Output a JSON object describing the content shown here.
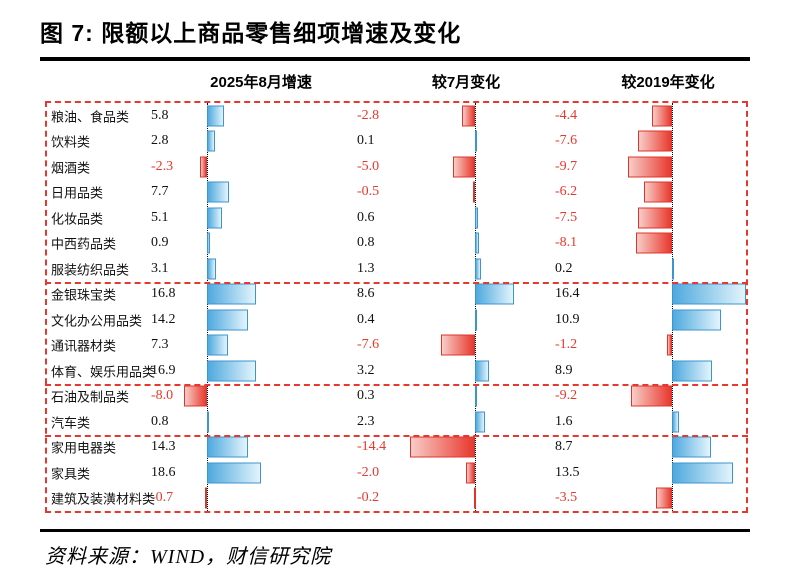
{
  "title": "图 7: 限额以上商品零售细项增速及变化",
  "source": "资料来源：WIND，财信研究院",
  "colors": {
    "positive_bar": "#4fa9de",
    "positive_bar_light": "#e3f4fc",
    "negative_bar": "#e8382d",
    "negative_bar_light": "#f8cdc8",
    "negative_text": "#e8382d",
    "positive_text": "#111111",
    "box_border": "#e8382d"
  },
  "chart_data": {
    "type": "bar",
    "orientation": "horizontal",
    "unit": "%",
    "grid": "off",
    "legend": "none",
    "categories": [
      "粮油、食品类",
      "饮料类",
      "烟酒类",
      "日用品类",
      "化妆品类",
      "中西药品类",
      "服装纺织品类",
      "金银珠宝类",
      "文化办公用品类",
      "通讯器材类",
      "体育、娱乐用品类",
      "石油及制品类",
      "汽车类",
      "家用电器类",
      "家具类",
      "建筑及装潢材料类"
    ],
    "group_sizes": [
      7,
      4,
      2,
      3
    ],
    "series": [
      {
        "name": "2025年8月增速",
        "values": [
          5.8,
          2.8,
          -2.3,
          7.7,
          5.1,
          0.9,
          3.1,
          16.8,
          14.2,
          7.3,
          16.9,
          -8.0,
          0.8,
          14.3,
          18.6,
          -0.7
        ]
      },
      {
        "name": "较7月变化",
        "values": [
          -2.8,
          0.1,
          -5.0,
          -0.5,
          0.6,
          0.8,
          1.3,
          8.6,
          0.4,
          -7.6,
          3.2,
          0.3,
          2.3,
          -14.4,
          -2.0,
          -0.2
        ]
      },
      {
        "name": "较2019年变化",
        "values": [
          -4.4,
          -7.6,
          -9.7,
          -6.2,
          -7.5,
          -8.1,
          0.2,
          16.4,
          10.9,
          -1.2,
          8.9,
          -9.2,
          1.6,
          8.7,
          13.5,
          -3.5
        ]
      }
    ]
  }
}
